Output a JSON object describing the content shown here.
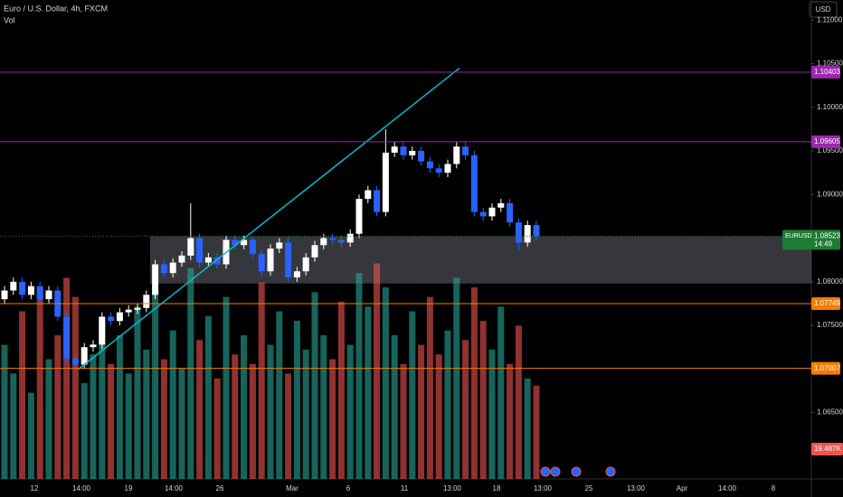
{
  "chart_data": {
    "type": "candlestick",
    "title": "Euro / U.S. Dollar, 4h, FXCM",
    "volume_title": "Vol",
    "currency": "USD",
    "categories": [
      "12",
      "14:00",
      "19",
      "14:00",
      "26",
      "Mar",
      "6",
      "11",
      "13:00",
      "18",
      "13:00",
      "25",
      "13:00",
      "Apr",
      "14:00",
      "8"
    ],
    "open": [
      1.078,
      1.079,
      1.08,
      1.0785,
      1.0795,
      1.078,
      1.079,
      1.076,
      1.0712,
      1.0705,
      1.0725,
      1.0728,
      1.076,
      1.0755,
      1.0765,
      1.0768,
      1.077,
      1.0785,
      1.082,
      1.081,
      1.0822,
      1.083,
      1.085,
      1.0822,
      1.0828,
      1.082,
      1.0848,
      1.0842,
      1.0848,
      1.0832,
      1.0812,
      1.0838,
      1.0845,
      1.0805,
      1.0812,
      1.0828,
      1.0842,
      1.085,
      1.0848,
      1.0845,
      1.0855,
      1.0895,
      1.0905,
      1.088,
      1.0948,
      1.0955,
      1.0945,
      1.095,
      1.0938,
      1.093,
      1.0925,
      1.0935,
      1.0955,
      1.0945,
      1.088,
      1.0875,
      1.0885,
      1.089,
      1.0868,
      1.0845,
      1.0865
    ],
    "high": [
      1.0795,
      1.0805,
      1.0805,
      1.08,
      1.08,
      1.0795,
      1.0795,
      1.0765,
      1.0717,
      1.073,
      1.0733,
      1.0765,
      1.0765,
      1.077,
      1.0773,
      1.0775,
      1.079,
      1.0825,
      1.0825,
      1.0827,
      1.0835,
      1.089,
      1.0855,
      1.0833,
      1.0833,
      1.0853,
      1.0853,
      1.0853,
      1.0853,
      1.0837,
      1.0843,
      1.085,
      1.085,
      1.0817,
      1.0833,
      1.0847,
      1.0855,
      1.0855,
      1.0853,
      1.086,
      1.09,
      1.091,
      1.091,
      1.0975,
      1.096,
      1.096,
      1.0955,
      1.0955,
      1.0943,
      1.0935,
      1.094,
      1.096,
      1.096,
      1.095,
      1.0885,
      1.089,
      1.0895,
      1.0895,
      1.0873,
      1.087,
      1.087
    ],
    "low": [
      1.0775,
      1.0785,
      1.078,
      1.078,
      1.0775,
      1.0775,
      1.0755,
      1.0707,
      1.0698,
      1.07,
      1.072,
      1.0723,
      1.075,
      1.075,
      1.076,
      1.0763,
      1.0765,
      1.078,
      1.0805,
      1.0805,
      1.0817,
      1.0825,
      1.0817,
      1.0817,
      1.0815,
      1.0815,
      1.0837,
      1.0837,
      1.0827,
      1.0807,
      1.0807,
      1.0833,
      1.08,
      1.08,
      1.0807,
      1.0823,
      1.0837,
      1.0843,
      1.084,
      1.084,
      1.085,
      1.089,
      1.0875,
      1.0875,
      1.0943,
      1.094,
      1.094,
      1.0933,
      1.0925,
      1.092,
      1.092,
      1.093,
      1.094,
      1.0875,
      1.087,
      1.087,
      1.088,
      1.0863,
      1.0835,
      1.084,
      1.0847
    ],
    "close": [
      1.079,
      1.08,
      1.0785,
      1.0795,
      1.078,
      1.079,
      1.076,
      1.0712,
      1.0705,
      1.0725,
      1.0728,
      1.076,
      1.0755,
      1.0765,
      1.0768,
      1.077,
      1.0785,
      1.082,
      1.081,
      1.0822,
      1.083,
      1.085,
      1.0822,
      1.0828,
      1.082,
      1.0848,
      1.0842,
      1.0848,
      1.0832,
      1.0812,
      1.0838,
      1.0845,
      1.0805,
      1.0812,
      1.0828,
      1.0842,
      1.085,
      1.0848,
      1.0845,
      1.0855,
      1.0895,
      1.0905,
      1.088,
      1.0948,
      1.0955,
      1.0945,
      1.095,
      1.0938,
      1.093,
      1.0925,
      1.0935,
      1.0955,
      1.0945,
      1.088,
      1.0875,
      1.0885,
      1.089,
      1.0868,
      1.0845,
      1.0865,
      1.0852
    ],
    "volume": [
      28,
      22,
      35,
      18,
      40,
      25,
      30,
      42,
      38,
      20,
      26,
      33,
      24,
      30,
      22,
      36,
      27,
      40,
      25,
      31,
      23,
      44,
      29,
      34,
      21,
      38,
      26,
      30,
      24,
      41,
      28,
      35,
      22,
      33,
      27,
      39,
      30,
      25,
      37,
      28,
      43,
      36,
      45,
      40,
      30,
      24,
      35,
      28,
      38,
      26,
      31,
      42,
      29,
      40,
      33,
      27,
      36,
      24,
      32,
      21,
      19.487
    ],
    "volume_label": "19.487K",
    "up_color": "#ffffff",
    "down_color": "#2962ff",
    "volume_up_color": "#26a69a",
    "volume_down_color": "#ef5350",
    "ylim": [
      1.0574,
      1.1123
    ],
    "volume_lim": [
      0,
      55
    ],
    "yticks": [
      {
        "value": 1.065,
        "label": "1.06500"
      },
      {
        "value": 1.075,
        "label": "1.07500"
      },
      {
        "value": 1.08,
        "label": "1.08000"
      },
      {
        "value": 1.09,
        "label": "1.09000"
      },
      {
        "value": 1.095,
        "label": "1.09500"
      },
      {
        "value": 1.1,
        "label": "1.10000"
      },
      {
        "value": 1.105,
        "label": "1.10500"
      },
      {
        "value": 1.11,
        "label": "1.11000"
      }
    ],
    "levels": [
      {
        "value": 1.10403,
        "color": "#9c27b0"
      },
      {
        "value": 1.09605,
        "color": "#9c27b0"
      },
      {
        "value": 1.07749,
        "color": "#f57c00"
      },
      {
        "value": 1.07007,
        "color": "#f57c00"
      }
    ],
    "zone": [
      1.0852,
      1.0798
    ],
    "trendline": [
      1.07,
      1.1045
    ],
    "last_price": {
      "symbol": "EURUSD",
      "value": 1.08523,
      "countdown": "14:49",
      "color": "#1e7b34"
    }
  }
}
